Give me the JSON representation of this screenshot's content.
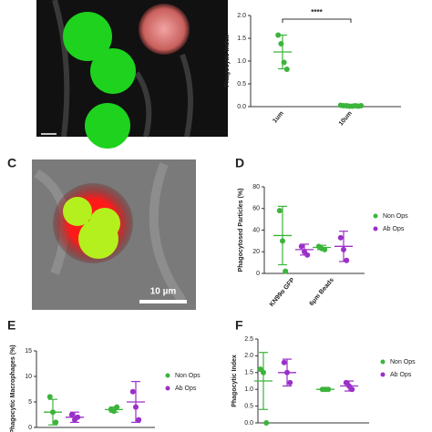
{
  "chart_data": [
    {
      "type": "dot",
      "ylabel": "Phagocytic Index",
      "categories": [
        "1um",
        "10um"
      ],
      "annotation": "****",
      "ylim": [
        0,
        2
      ],
      "yticks": [
        {
          "value": 0,
          "label": "0.0"
        },
        {
          "value": 0.5,
          "label": "0.5"
        },
        {
          "value": 1,
          "label": "1.0"
        },
        {
          "value": 1.5,
          "label": "1.5"
        },
        {
          "value": 2,
          "label": "2.0"
        }
      ],
      "series": [
        {
          "color": "#3cb43c",
          "points": [
            [
              1.57,
              1.38,
              0.97,
              0.82
            ],
            [
              0.03,
              0.02,
              0.02,
              0.01,
              0.01,
              0.02,
              0.01,
              0.02
            ]
          ],
          "means": [
            1.2,
            0.02
          ],
          "errors": [
            0.37,
            0.01
          ]
        }
      ]
    },
    {
      "type": "dot",
      "panel_label": "D",
      "ylabel": "Phagocytosed Particles (%)",
      "categories": [
        "KN99α GFP",
        "6μm Beads"
      ],
      "ylim": [
        0,
        80
      ],
      "yticks": [
        0,
        20,
        40,
        60,
        80
      ],
      "legend": "right",
      "series": [
        {
          "name": "Non Ops",
          "color": "#3cb43c",
          "points": [
            [
              58,
              30,
              2
            ],
            [
              25,
              23,
              22
            ]
          ],
          "means": [
            35,
            24
          ],
          "errors": [
            27,
            2
          ]
        },
        {
          "name": "Ab Ops",
          "color": "#9b30c8",
          "points": [
            [
              25,
              20,
              17
            ],
            [
              33,
              22,
              12
            ]
          ],
          "means": [
            22,
            25
          ],
          "errors": [
            5,
            14
          ]
        }
      ]
    },
    {
      "type": "dot",
      "panel_label": "E",
      "ylabel": "Phagocytic Macrophages (%)",
      "ylim": [
        0,
        15
      ],
      "yticks": [
        0,
        5,
        10,
        15
      ],
      "legend": "right",
      "series": [
        {
          "name": "Non Ops",
          "color": "#3cb43c",
          "points": [
            [
              6,
              3,
              1
            ],
            [
              3.5,
              3.2,
              4
            ]
          ],
          "means": [
            3,
            3.5
          ],
          "errors": [
            2.5,
            0.5
          ]
        },
        {
          "name": "Ab Ops",
          "color": "#9b30c8",
          "points": [
            [
              2.5,
              1.5,
              2
            ],
            [
              7,
              4,
              1.5
            ]
          ],
          "means": [
            2,
            5
          ],
          "errors": [
            1,
            4
          ]
        }
      ]
    },
    {
      "type": "dot",
      "panel_label": "F",
      "ylabel": "Phagocytic Index",
      "ylim": [
        0,
        2.5
      ],
      "yticks": [
        {
          "value": 0,
          "label": "0.0"
        },
        {
          "value": 0.5,
          "label": "0.5"
        },
        {
          "value": 1,
          "label": "1.0"
        },
        {
          "value": 1.5,
          "label": "1.5"
        },
        {
          "value": 2,
          "label": "2.0"
        },
        {
          "value": 2.5,
          "label": "2.5"
        }
      ],
      "legend": "right",
      "series": [
        {
          "name": "Non Ops",
          "color": "#3cb43c",
          "points": [
            [
              1.6,
              1.5,
              0
            ],
            [
              1,
              1,
              1
            ]
          ],
          "means": [
            1.25,
            1
          ],
          "errors": [
            0.85,
            0
          ]
        },
        {
          "name": "Ab Ops",
          "color": "#9b30c8",
          "points": [
            [
              1.8,
              1.5,
              1.2
            ],
            [
              1.2,
              1.1,
              1.0
            ]
          ],
          "means": [
            1.5,
            1.1
          ],
          "errors": [
            0.4,
            0.15
          ]
        }
      ]
    }
  ],
  "figure_c": {
    "panel_label": "C",
    "scale_bar": "10 µm"
  }
}
